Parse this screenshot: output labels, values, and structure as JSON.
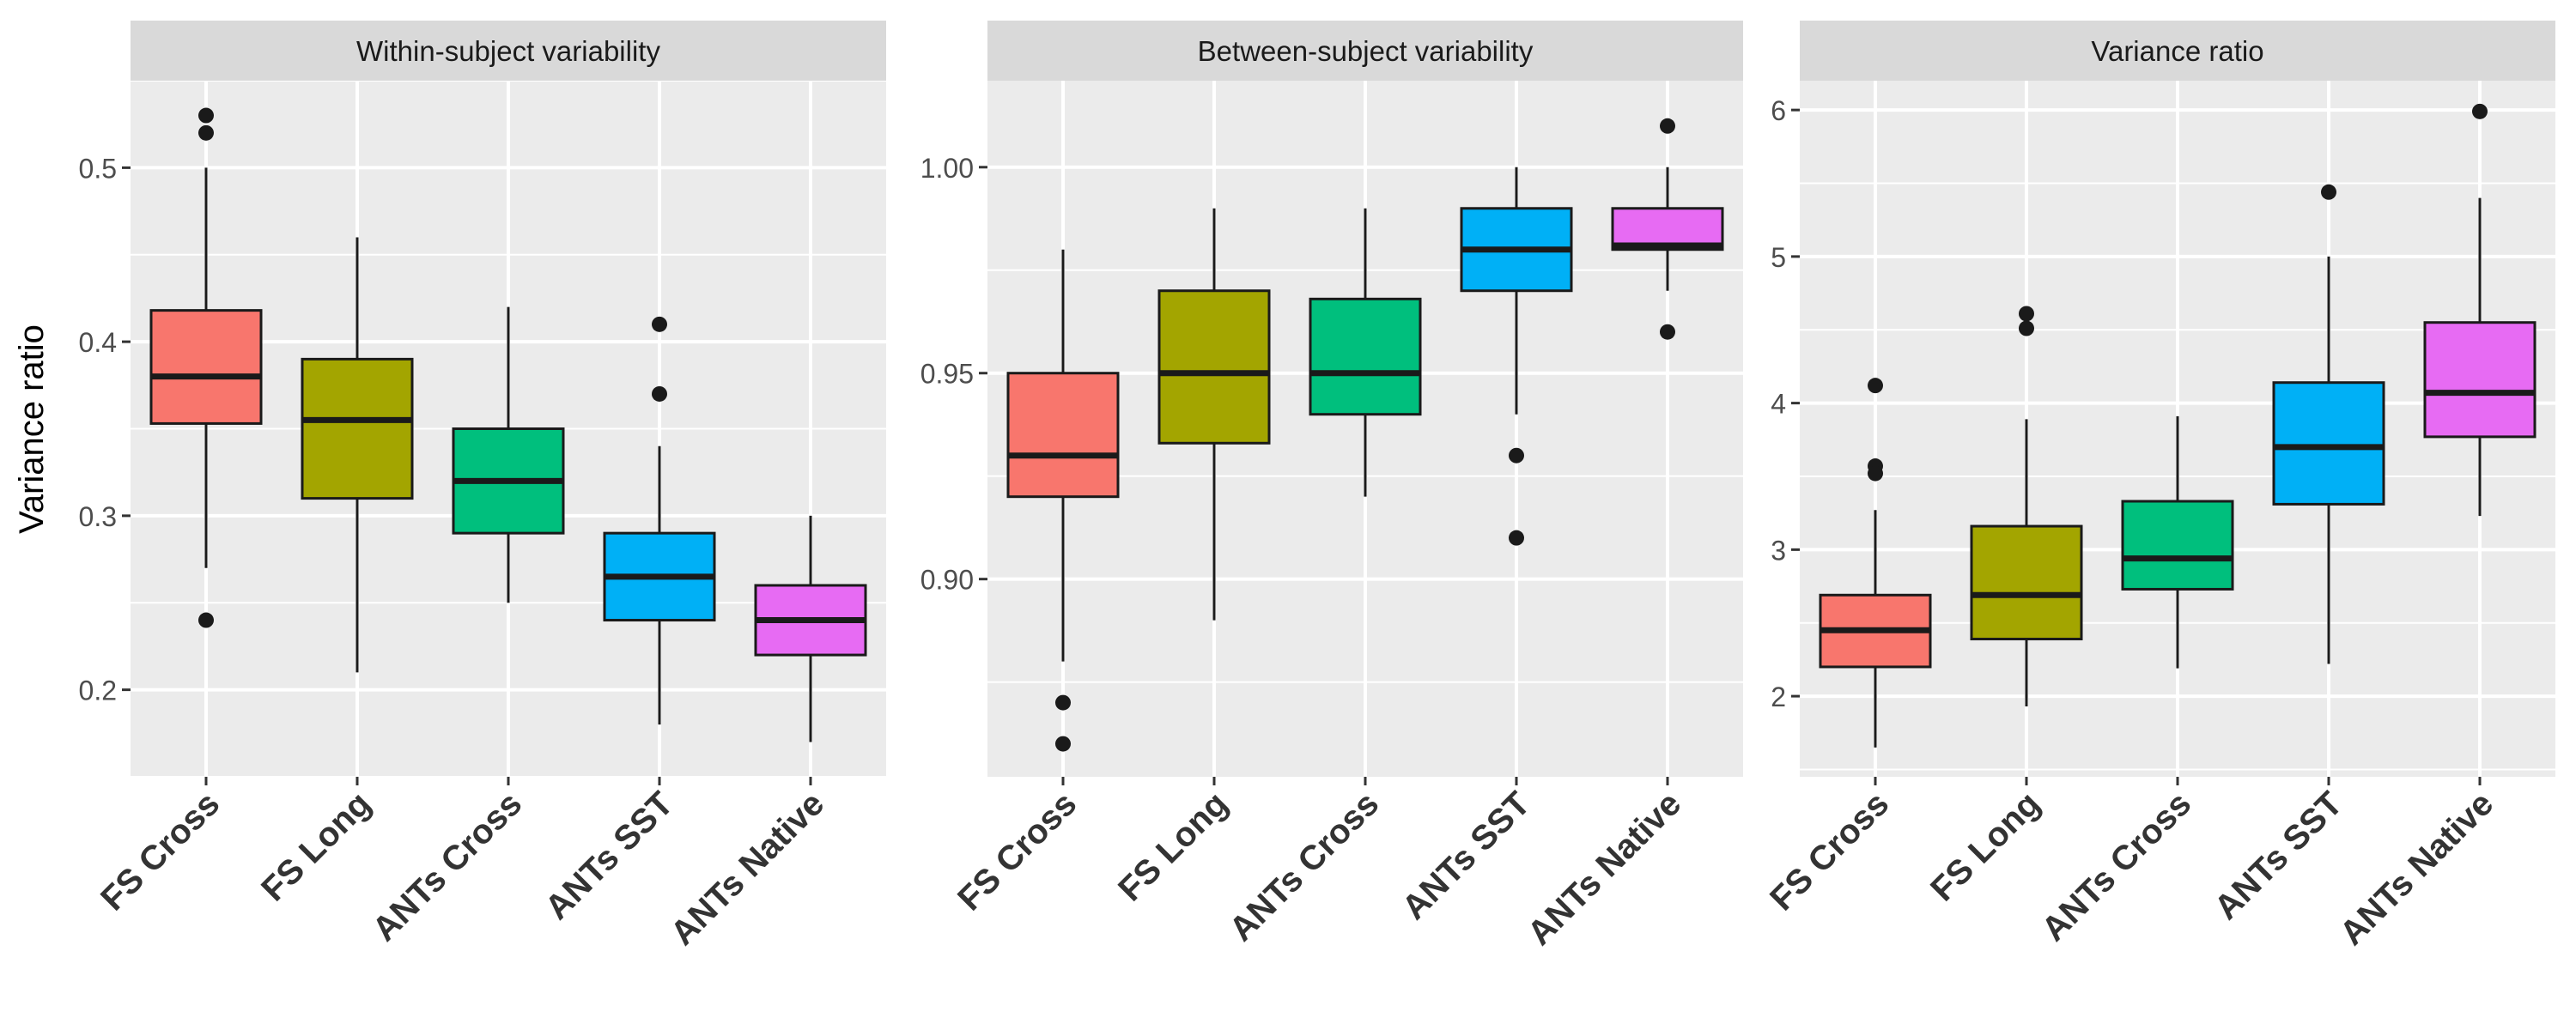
{
  "figure": {
    "ylabel": "Variance ratio"
  },
  "categories": [
    "FS Cross",
    "FS Long",
    "ANTs Cross",
    "ANTs SST",
    "ANTs Native"
  ],
  "colors": [
    "#F8766D",
    "#A3A500",
    "#00BF7D",
    "#00B0F6",
    "#E76BF3"
  ],
  "chart_data": [
    {
      "type": "box",
      "title": "Within-subject variability",
      "ylim": [
        0.15,
        0.55
      ],
      "yticks": [
        0.2,
        0.3,
        0.4,
        0.5
      ],
      "yticklabels": [
        "0.2",
        "0.3",
        "0.4",
        "0.5"
      ],
      "grid": true,
      "categories": [
        "FS Cross",
        "FS Long",
        "ANTs Cross",
        "ANTs SST",
        "ANTs Native"
      ],
      "boxes": [
        {
          "q1": 0.353,
          "median": 0.38,
          "q3": 0.418,
          "whisker_low": 0.27,
          "whisker_high": 0.5,
          "outliers": [
            0.53,
            0.52,
            0.24
          ]
        },
        {
          "q1": 0.31,
          "median": 0.355,
          "q3": 0.39,
          "whisker_low": 0.21,
          "whisker_high": 0.46,
          "outliers": []
        },
        {
          "q1": 0.29,
          "median": 0.32,
          "q3": 0.35,
          "whisker_low": 0.25,
          "whisker_high": 0.42,
          "outliers": []
        },
        {
          "q1": 0.24,
          "median": 0.265,
          "q3": 0.29,
          "whisker_low": 0.18,
          "whisker_high": 0.34,
          "outliers": [
            0.41,
            0.37
          ]
        },
        {
          "q1": 0.22,
          "median": 0.24,
          "q3": 0.26,
          "whisker_low": 0.17,
          "whisker_high": 0.3,
          "outliers": []
        }
      ]
    },
    {
      "type": "box",
      "title": "Between-subject variability",
      "ylim": [
        0.852,
        1.021
      ],
      "yticks": [
        0.9,
        0.95,
        1.0
      ],
      "yticklabels": [
        "0.90",
        "0.95",
        "1.00"
      ],
      "grid": true,
      "categories": [
        "FS Cross",
        "FS Long",
        "ANTs Cross",
        "ANTs SST",
        "ANTs Native"
      ],
      "boxes": [
        {
          "q1": 0.92,
          "median": 0.93,
          "q3": 0.95,
          "whisker_low": 0.88,
          "whisker_high": 0.98,
          "outliers": [
            0.87,
            0.86
          ]
        },
        {
          "q1": 0.933,
          "median": 0.95,
          "q3": 0.97,
          "whisker_low": 0.89,
          "whisker_high": 0.99,
          "outliers": []
        },
        {
          "q1": 0.94,
          "median": 0.95,
          "q3": 0.968,
          "whisker_low": 0.92,
          "whisker_high": 0.99,
          "outliers": []
        },
        {
          "q1": 0.97,
          "median": 0.98,
          "q3": 0.99,
          "whisker_low": 0.94,
          "whisker_high": 1.0,
          "outliers": [
            0.93,
            0.91
          ]
        },
        {
          "q1": 0.98,
          "median": 0.981,
          "q3": 0.99,
          "whisker_low": 0.97,
          "whisker_high": 1.0,
          "outliers": [
            1.01,
            0.96
          ]
        }
      ]
    },
    {
      "type": "box",
      "title": "Variance ratio",
      "ylim": [
        1.45,
        6.2
      ],
      "yticks": [
        2,
        3,
        4,
        5,
        6
      ],
      "yticklabels": [
        "2",
        "3",
        "4",
        "5",
        "6"
      ],
      "grid": true,
      "categories": [
        "FS Cross",
        "FS Long",
        "ANTs Cross",
        "ANTs SST",
        "ANTs Native"
      ],
      "boxes": [
        {
          "q1": 2.2,
          "median": 2.45,
          "q3": 2.69,
          "whisker_low": 1.65,
          "whisker_high": 3.27,
          "outliers": [
            4.12,
            3.57,
            3.52
          ]
        },
        {
          "q1": 2.39,
          "median": 2.69,
          "q3": 3.16,
          "whisker_low": 1.93,
          "whisker_high": 3.89,
          "outliers": [
            4.61,
            4.51
          ]
        },
        {
          "q1": 2.73,
          "median": 2.94,
          "q3": 3.33,
          "whisker_low": 2.19,
          "whisker_high": 3.91,
          "outliers": []
        },
        {
          "q1": 3.31,
          "median": 3.7,
          "q3": 4.14,
          "whisker_low": 2.22,
          "whisker_high": 5.0,
          "outliers": [
            5.44
          ]
        },
        {
          "q1": 3.77,
          "median": 4.07,
          "q3": 4.55,
          "whisker_low": 3.23,
          "whisker_high": 5.4,
          "outliers": [
            5.99
          ]
        }
      ]
    }
  ]
}
